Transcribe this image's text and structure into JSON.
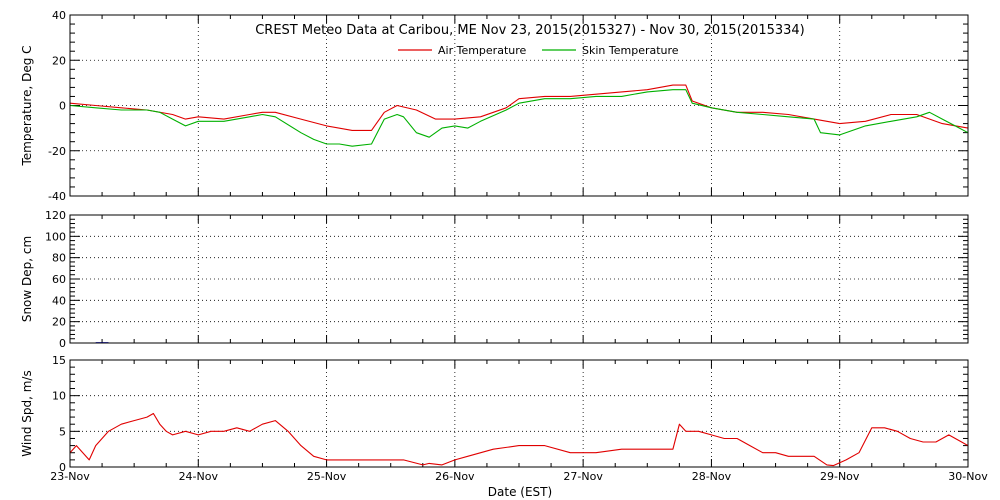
{
  "chart_data": [
    {
      "type": "line",
      "panel": "temperature",
      "title": "CREST Meteo Data at Caribou, ME   Nov 23, 2015(2015327) - Nov 30, 2015(2015334)",
      "ylabel": "Temperature, Deg C",
      "ylim": [
        -40,
        40
      ],
      "yticks": [
        -40,
        -20,
        0,
        20,
        40
      ],
      "xlim": [
        0,
        7
      ],
      "x_ticks": [
        "23-Nov",
        "24-Nov",
        "25-Nov",
        "26-Nov",
        "27-Nov",
        "28-Nov",
        "29-Nov",
        "30-Nov"
      ],
      "grid": true,
      "legend_position": "top-center",
      "series": [
        {
          "name": "Air Temperature",
          "color": "#e00000",
          "x": [
            0,
            0.2,
            0.4,
            0.6,
            0.8,
            0.9,
            1.0,
            1.2,
            1.4,
            1.5,
            1.6,
            1.8,
            2.0,
            2.2,
            2.35,
            2.45,
            2.55,
            2.7,
            2.85,
            3.0,
            3.2,
            3.4,
            3.5,
            3.7,
            3.9,
            4.1,
            4.3,
            4.5,
            4.7,
            4.8,
            4.85,
            5.0,
            5.2,
            5.4,
            5.6,
            5.8,
            6.0,
            6.2,
            6.4,
            6.6,
            6.8,
            7.0
          ],
          "y": [
            1,
            0,
            -1,
            -2,
            -4,
            -6,
            -5,
            -6,
            -4,
            -3,
            -3,
            -6,
            -9,
            -11,
            -11,
            -3,
            0,
            -2,
            -6,
            -6,
            -5,
            -1,
            3,
            4,
            4,
            5,
            6,
            7,
            9,
            9,
            2,
            -1,
            -3,
            -3,
            -4,
            -6,
            -8,
            -7,
            -4,
            -4,
            -8,
            -10
          ]
        },
        {
          "name": "Skin Temperature",
          "color": "#00b000",
          "x": [
            0,
            0.2,
            0.4,
            0.6,
            0.7,
            0.8,
            0.9,
            1.0,
            1.2,
            1.4,
            1.5,
            1.6,
            1.8,
            1.9,
            2.0,
            2.1,
            2.2,
            2.35,
            2.45,
            2.55,
            2.6,
            2.7,
            2.8,
            2.9,
            3.0,
            3.1,
            3.2,
            3.4,
            3.5,
            3.7,
            3.9,
            4.1,
            4.3,
            4.5,
            4.7,
            4.8,
            4.85,
            5.0,
            5.2,
            5.4,
            5.6,
            5.8,
            5.85,
            6.0,
            6.2,
            6.4,
            6.6,
            6.7,
            6.8,
            6.9,
            7.0
          ],
          "y": [
            0,
            -1,
            -2,
            -2,
            -3,
            -6,
            -9,
            -7,
            -7,
            -5,
            -4,
            -5,
            -12,
            -15,
            -17,
            -17,
            -18,
            -17,
            -6,
            -4,
            -5,
            -12,
            -14,
            -10,
            -9,
            -10,
            -7,
            -2,
            1,
            3,
            3,
            4,
            4,
            6,
            7,
            7,
            1,
            -1,
            -3,
            -4,
            -5,
            -6,
            -12,
            -13,
            -9,
            -7,
            -5,
            -3,
            -6,
            -9,
            -12
          ]
        }
      ]
    },
    {
      "type": "line",
      "panel": "snow",
      "title": "",
      "ylabel": "Snow Dep, cm",
      "ylim": [
        0,
        120
      ],
      "yticks": [
        0,
        20,
        40,
        60,
        80,
        100,
        120
      ],
      "xlim": [
        0,
        7
      ],
      "grid": true,
      "series": [
        {
          "name": "",
          "color": "#0000cc",
          "x": [
            0.2,
            0.3
          ],
          "y": [
            0.3,
            0.3
          ]
        }
      ]
    },
    {
      "type": "line",
      "panel": "wind",
      "title": "",
      "ylabel": "Wind Spd, m/s",
      "xlabel": "Date (EST)",
      "ylim": [
        0,
        15
      ],
      "yticks": [
        0,
        5,
        10,
        15
      ],
      "xlim": [
        0,
        7
      ],
      "x_ticks": [
        "23-Nov",
        "24-Nov",
        "25-Nov",
        "26-Nov",
        "27-Nov",
        "28-Nov",
        "29-Nov",
        "30-Nov"
      ],
      "grid": true,
      "series": [
        {
          "name": "",
          "color": "#e00000",
          "x": [
            0,
            0.05,
            0.1,
            0.15,
            0.2,
            0.3,
            0.4,
            0.5,
            0.6,
            0.65,
            0.7,
            0.75,
            0.8,
            0.9,
            1.0,
            1.1,
            1.2,
            1.3,
            1.4,
            1.5,
            1.6,
            1.7,
            1.8,
            1.9,
            2.0,
            2.2,
            2.4,
            2.6,
            2.75,
            2.8,
            2.9,
            3.0,
            3.1,
            3.3,
            3.5,
            3.7,
            3.9,
            4.1,
            4.3,
            4.5,
            4.7,
            4.75,
            4.8,
            4.9,
            5.0,
            5.1,
            5.2,
            5.3,
            5.4,
            5.5,
            5.6,
            5.7,
            5.8,
            5.9,
            5.95,
            6.05,
            6.15,
            6.25,
            6.35,
            6.45,
            6.55,
            6.65,
            6.75,
            6.85,
            6.95,
            7.0
          ],
          "y": [
            2,
            3,
            2,
            1,
            3,
            5,
            6,
            6.5,
            7,
            7.5,
            6,
            5,
            4.5,
            5,
            4.5,
            5,
            5,
            5.5,
            5,
            6,
            6.5,
            5,
            3,
            1.5,
            1,
            1,
            1,
            1,
            0.3,
            0.5,
            0.3,
            1,
            1.5,
            2.5,
            3,
            3,
            2,
            2,
            2.5,
            2.5,
            2.5,
            6,
            5,
            5,
            4.5,
            4,
            4,
            3,
            2,
            2,
            1.5,
            1.5,
            1.5,
            0.3,
            0.2,
            1,
            2,
            5.5,
            5.5,
            5,
            4,
            3.5,
            3.5,
            4.5,
            3.5,
            3
          ]
        }
      ]
    }
  ]
}
